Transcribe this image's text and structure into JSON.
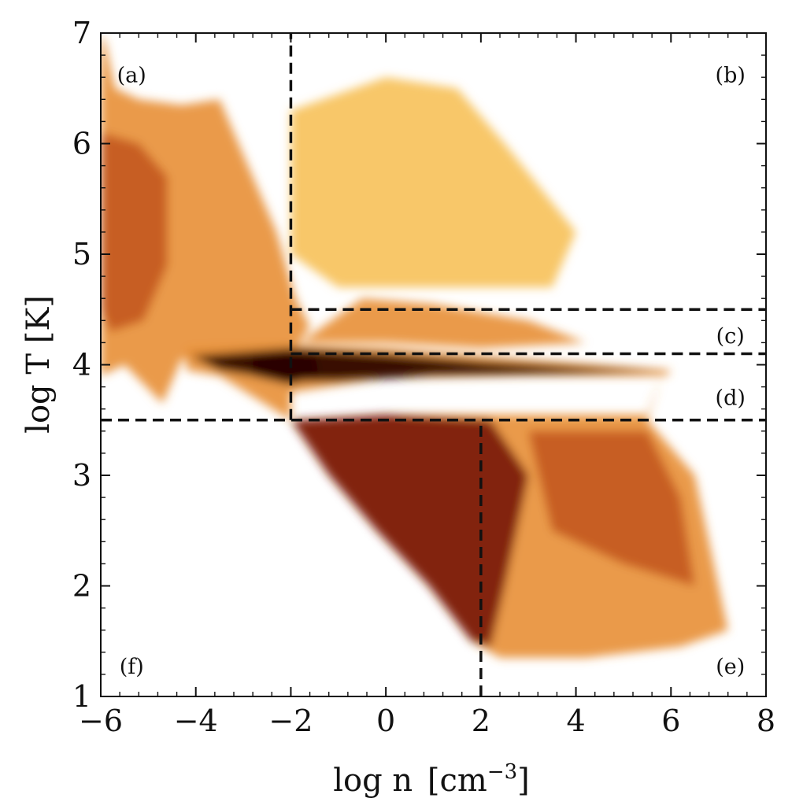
{
  "chart_data": {
    "type": "heatmap",
    "title": "",
    "xlabel": "log n",
    "xlabel_unit": "[cm",
    "xlabel_exp": "−3",
    "xlabel_close": "]",
    "ylabel": "log T [K]",
    "xlim": [
      -6,
      8
    ],
    "ylim": [
      1,
      7
    ],
    "x_ticks": [
      -6,
      -4,
      -2,
      0,
      2,
      4,
      6,
      8
    ],
    "x_tick_labels": [
      "−6",
      "−4",
      "−2",
      "0",
      "2",
      "4",
      "6",
      "8"
    ],
    "y_ticks": [
      1,
      2,
      3,
      4,
      5,
      6,
      7
    ],
    "y_tick_labels": [
      "1",
      "2",
      "3",
      "4",
      "5",
      "6",
      "7"
    ],
    "grid": false,
    "colormap": [
      "#fff7c8",
      "#f7c25c",
      "#e8913a",
      "#c45a1e",
      "#7a1a08",
      "#2a0500"
    ],
    "density_regions": [
      {
        "polygon": [
          [
            -6,
            7
          ],
          [
            -5.9,
            6.9
          ],
          [
            -5.7,
            6.5
          ],
          [
            -5.2,
            6.4
          ],
          [
            -4.3,
            6.35
          ],
          [
            -3.5,
            6.4
          ],
          [
            -2.9,
            5.8
          ],
          [
            -2.3,
            5.2
          ],
          [
            -1.9,
            4.6
          ],
          [
            -1.6,
            4.35
          ],
          [
            -1.9,
            4.15
          ],
          [
            -3.2,
            4.1
          ],
          [
            -4.3,
            4.05
          ],
          [
            -4.7,
            3.65
          ],
          [
            -5.5,
            4.0
          ],
          [
            -6,
            3.9
          ]
        ],
        "level": 0.45
      },
      {
        "polygon": [
          [
            -6,
            6.1
          ],
          [
            -5.2,
            6.0
          ],
          [
            -4.6,
            5.7
          ],
          [
            -4.6,
            4.9
          ],
          [
            -5.1,
            4.4
          ],
          [
            -5.8,
            4.3
          ],
          [
            -6,
            4.5
          ]
        ],
        "level": 0.6
      },
      {
        "polygon": [
          [
            -4.2,
            4.15
          ],
          [
            -2.5,
            4.18
          ],
          [
            0,
            4.15
          ],
          [
            2,
            4.08
          ],
          [
            4.5,
            4.0
          ],
          [
            6,
            3.95
          ],
          [
            5.9,
            3.9
          ],
          [
            3,
            3.9
          ],
          [
            0,
            3.88
          ],
          [
            -2,
            3.75
          ],
          [
            -2,
            3.5
          ],
          [
            -1.5,
            3.5
          ],
          [
            0,
            3.55
          ],
          [
            2,
            3.55
          ],
          [
            5.5,
            3.55
          ],
          [
            5.8,
            3.9
          ],
          [
            5.5,
            3.5
          ],
          [
            6.5,
            3.0
          ],
          [
            7.0,
            2.0
          ],
          [
            7.2,
            1.6
          ],
          [
            6.2,
            1.45
          ],
          [
            4.2,
            1.35
          ],
          [
            2.4,
            1.35
          ],
          [
            1.8,
            1.5
          ],
          [
            0.9,
            2.0
          ],
          [
            -0.2,
            2.5
          ],
          [
            -1.2,
            3.0
          ],
          [
            -2,
            3.5
          ],
          [
            -3.5,
            3.9
          ],
          [
            -4.2,
            3.95
          ]
        ],
        "level": 0.45
      },
      {
        "polygon": [
          [
            -2,
            3.5
          ],
          [
            0,
            3.55
          ],
          [
            2.2,
            3.5
          ],
          [
            3,
            3.0
          ],
          [
            2.5,
            2.0
          ],
          [
            2.2,
            1.45
          ],
          [
            1.8,
            1.5
          ],
          [
            0.9,
            2.0
          ],
          [
            -0.2,
            2.5
          ],
          [
            -1.2,
            3.0
          ]
        ],
        "level": 0.8
      },
      {
        "polygon": [
          [
            -4.1,
            4.08
          ],
          [
            -2,
            4.15
          ],
          [
            0,
            4.1
          ],
          [
            2,
            4.03
          ],
          [
            4,
            3.98
          ],
          [
            5.9,
            3.94
          ],
          [
            4,
            3.92
          ],
          [
            1,
            3.9
          ],
          [
            -1,
            3.85
          ],
          [
            -2,
            3.85
          ],
          [
            -3.5,
            3.95
          ]
        ],
        "level": 0.9
      },
      {
        "polygon": [
          [
            -2.8,
            4.1
          ],
          [
            -1.5,
            4.1
          ],
          [
            -1.4,
            3.9
          ],
          [
            -2,
            3.82
          ],
          [
            -2.8,
            3.9
          ]
        ],
        "level": 1.0
      },
      {
        "polygon": [
          [
            -1.8,
            4.2
          ],
          [
            -0.5,
            4.6
          ],
          [
            1,
            4.55
          ],
          [
            3,
            4.4
          ],
          [
            4.2,
            4.2
          ],
          [
            2,
            4.15
          ],
          [
            0,
            4.2
          ]
        ],
        "level": 0.4
      },
      {
        "polygon": [
          [
            -2,
            6.3
          ],
          [
            0,
            6.6
          ],
          [
            1.5,
            6.5
          ],
          [
            2.5,
            6.0
          ],
          [
            4,
            5.2
          ],
          [
            3.5,
            4.7
          ],
          [
            1,
            4.7
          ],
          [
            -1,
            4.7
          ],
          [
            -2,
            5.0
          ]
        ],
        "level": 0.15
      },
      {
        "polygon": [
          [
            3,
            3.4
          ],
          [
            5.5,
            3.4
          ],
          [
            6.2,
            2.8
          ],
          [
            6.5,
            2.0
          ],
          [
            5.0,
            2.2
          ],
          [
            3.5,
            2.5
          ]
        ],
        "level": 0.5
      }
    ],
    "dashed_lines": [
      {
        "orientation": "vertical",
        "x": -2,
        "y_range": [
          3.5,
          7
        ]
      },
      {
        "orientation": "vertical",
        "x": 2,
        "y_range": [
          1,
          3.5
        ]
      },
      {
        "orientation": "horizontal",
        "y": 3.5,
        "x_range": [
          -6,
          8
        ]
      },
      {
        "orientation": "horizontal",
        "y": 4.5,
        "x_range": [
          -2,
          8
        ]
      },
      {
        "orientation": "horizontal",
        "y": 4.1,
        "x_range": [
          -2,
          8
        ]
      }
    ],
    "region_labels": [
      {
        "text": "(a)",
        "x": -5.35,
        "y": 6.62
      },
      {
        "text": "(b)",
        "x": 7.25,
        "y": 6.62
      },
      {
        "text": "(c)",
        "x": 7.25,
        "y": 4.26
      },
      {
        "text": "(d)",
        "x": 7.25,
        "y": 3.7
      },
      {
        "text": "(e)",
        "x": 7.25,
        "y": 1.27
      },
      {
        "text": "(f)",
        "x": -5.35,
        "y": 1.27
      }
    ]
  }
}
